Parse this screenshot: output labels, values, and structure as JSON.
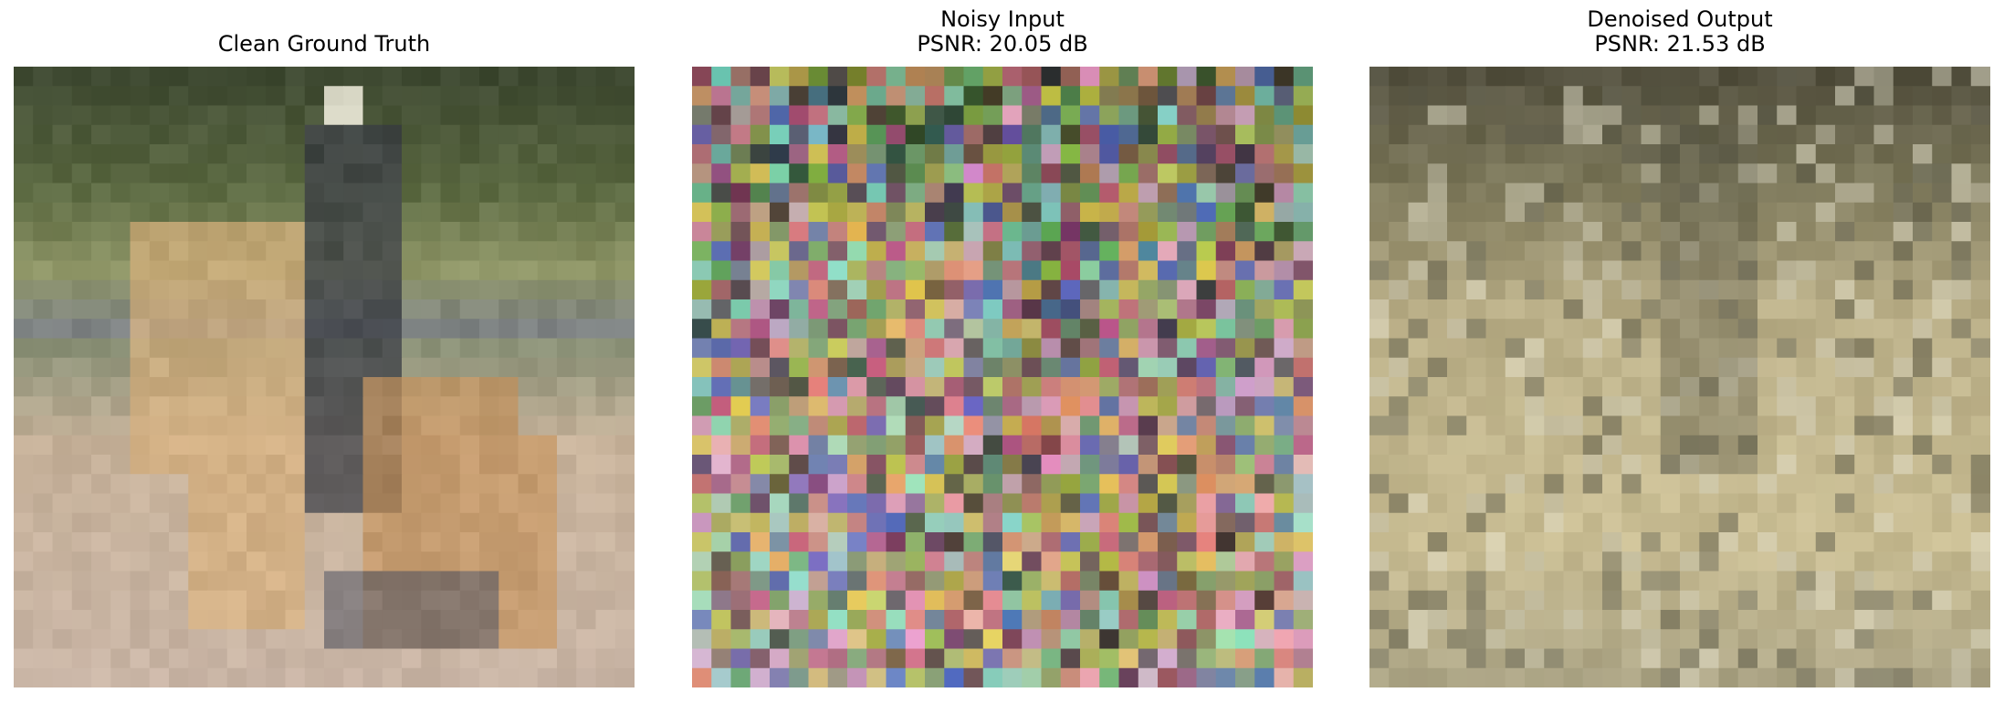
{
  "figure": {
    "panels": [
      {
        "title_lines": [
          "Clean Ground Truth"
        ],
        "image_description_icon": "pixelated-photo-horses-and-rider",
        "palette": {
          "top": "#3f4a32",
          "upper": "#5d6b43",
          "middle": "#8f9667",
          "lower": "#c7b29a",
          "bottom": "#c9b5a6",
          "horse": "#d8b07c",
          "rider": "#3a3d45",
          "ground_shadow": "#585a66"
        }
      },
      {
        "title_lines": [
          "Noisy Input",
          "PSNR: 20.05 dB"
        ],
        "image_description_icon": "pixelated-noisy-photo",
        "palette": {
          "base": "#8a8f6a",
          "noise_colors": [
            "#d98c79",
            "#6ea36b",
            "#b55f7e",
            "#5a6fb8",
            "#d7c65a",
            "#3d3f3a",
            "#8fd9c7",
            "#e0a2c8",
            "#a2b04b",
            "#6b3f5a"
          ]
        }
      },
      {
        "title_lines": [
          "Denoised Output",
          "PSNR: 21.53 dB"
        ],
        "image_description_icon": "pixelated-denoised-photo",
        "palette": {
          "top": "#54513f",
          "upper": "#7a7659",
          "middle": "#b9ae87",
          "lower": "#c9bd93",
          "bottom": "#a8a183",
          "light": "#d9d5bf",
          "dark": "#5b5a4a"
        }
      }
    ]
  }
}
